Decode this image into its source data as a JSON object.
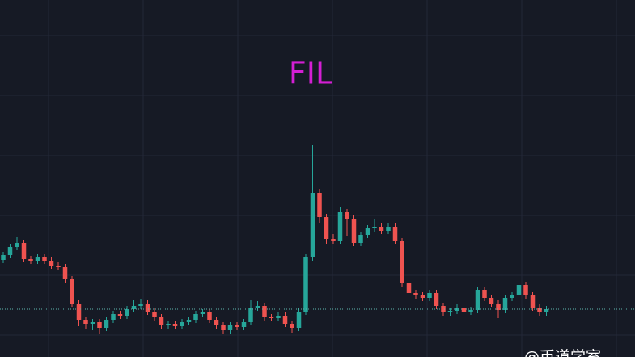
{
  "chart_data": {
    "type": "candlestick",
    "title": "FIL",
    "watermark": "@币道学室",
    "up_color": "#26a69a",
    "down_color": "#ef5350",
    "title_color": "#d41fd4",
    "price_line_color": "#5fb8b0",
    "ylim": [
      0,
      441
    ],
    "price_line": 59,
    "open": [
      120,
      126,
      136,
      141,
      121,
      119,
      123,
      119,
      113,
      111,
      96,
      66,
      46,
      41,
      43,
      36,
      46,
      53,
      51,
      59,
      63,
      66,
      56,
      49,
      39,
      41,
      38,
      43,
      46,
      53,
      55,
      46,
      39,
      33,
      39,
      37,
      43,
      61,
      63,
      49,
      48,
      51,
      41,
      36,
      56,
      123,
      203,
      173,
      146,
      143,
      179,
      171,
      141,
      151,
      159,
      161,
      156,
      161,
      143,
      91,
      79,
      76,
      73,
      79,
      63,
      55,
      57,
      61,
      56,
      58,
      83,
      73,
      66,
      58,
      73,
      76,
      89,
      76,
      61,
      55
    ],
    "high": [
      130,
      140,
      148,
      145,
      125,
      127,
      127,
      123,
      117,
      115,
      100,
      70,
      50,
      47,
      47,
      50,
      57,
      57,
      63,
      70,
      72,
      70,
      60,
      53,
      45,
      45,
      47,
      50,
      57,
      59,
      59,
      50,
      43,
      43,
      43,
      47,
      70,
      69,
      67,
      53,
      55,
      55,
      45,
      60,
      127,
      262,
      207,
      177,
      152,
      185,
      183,
      175,
      155,
      163,
      170,
      165,
      165,
      165,
      147,
      95,
      83,
      80,
      83,
      83,
      67,
      61,
      65,
      65,
      62,
      87,
      87,
      77,
      70,
      77,
      80,
      99,
      93,
      80,
      65,
      63
    ],
    "low": [
      116,
      122,
      132,
      117,
      115,
      115,
      115,
      109,
      107,
      92,
      62,
      38,
      35,
      33,
      29,
      32,
      42,
      47,
      47,
      55,
      59,
      52,
      45,
      35,
      35,
      34,
      34,
      39,
      42,
      49,
      42,
      35,
      29,
      29,
      33,
      33,
      39,
      57,
      45,
      44,
      44,
      37,
      30,
      32,
      52,
      119,
      165,
      140,
      139,
      139,
      150,
      137,
      137,
      147,
      155,
      152,
      152,
      139,
      87,
      75,
      72,
      69,
      69,
      59,
      51,
      51,
      53,
      52,
      52,
      54,
      69,
      62,
      48,
      54,
      69,
      72,
      72,
      57,
      51,
      51
    ],
    "close": [
      126,
      136,
      141,
      121,
      119,
      123,
      119,
      113,
      111,
      96,
      66,
      46,
      41,
      43,
      36,
      46,
      53,
      51,
      59,
      63,
      66,
      56,
      49,
      39,
      41,
      38,
      43,
      46,
      53,
      55,
      46,
      39,
      33,
      39,
      37,
      43,
      61,
      63,
      49,
      48,
      51,
      41,
      36,
      56,
      123,
      203,
      173,
      146,
      143,
      179,
      171,
      141,
      151,
      159,
      161,
      156,
      161,
      143,
      91,
      79,
      76,
      73,
      79,
      63,
      55,
      57,
      61,
      56,
      58,
      83,
      73,
      66,
      58,
      73,
      76,
      89,
      76,
      61,
      55,
      59
    ]
  }
}
